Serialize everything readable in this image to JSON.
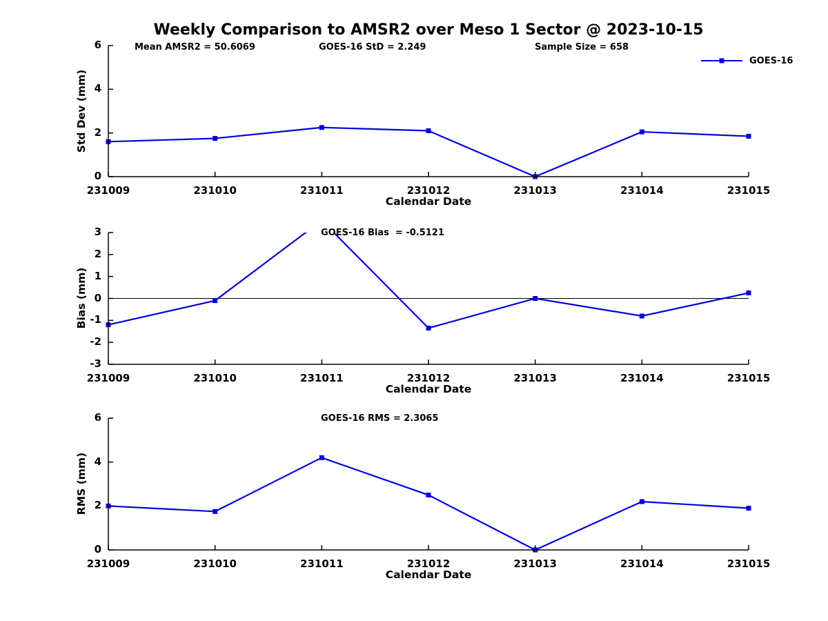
{
  "title": "Weekly Comparison to AMSR2 over Meso 1 Sector @ 2023-10-15",
  "legend": {
    "label": "GOES-16"
  },
  "colors": {
    "line": "#0000DC",
    "axis": "#000000",
    "background": "#FFFFFF"
  },
  "chart_data": [
    {
      "type": "line",
      "name": "std-dev-subplot",
      "categories": [
        "231009",
        "231010",
        "231011",
        "231012",
        "231013",
        "231014",
        "231015"
      ],
      "series": [
        {
          "name": "GOES-16",
          "values": [
            1.6,
            1.75,
            2.25,
            2.1,
            0.0,
            2.05,
            1.85
          ]
        }
      ],
      "xlabel": "Calendar Date",
      "ylabel": "Std Dev (mm)",
      "ylim": [
        0,
        6
      ],
      "yticks": [
        0,
        2,
        4,
        6
      ],
      "annotations": [
        "Mean AMSR2 = 50.6069",
        "GOES-16 StD = 2.249",
        "Sample Size = 658"
      ]
    },
    {
      "type": "line",
      "name": "bias-subplot",
      "categories": [
        "231009",
        "231010",
        "231011",
        "231012",
        "231013",
        "231014",
        "231015"
      ],
      "series": [
        {
          "name": "GOES-16",
          "values": [
            -1.2,
            -0.1,
            3.55,
            -1.35,
            0.0,
            -0.8,
            0.25
          ]
        }
      ],
      "xlabel": "Calendar Date",
      "ylabel": "Bias (mm)",
      "ylim": [
        -3,
        3
      ],
      "yticks": [
        -3,
        -2,
        -1,
        0,
        1,
        2,
        3
      ],
      "zero_line": true,
      "note": "line peak at 231011 rises above the y-axis maximum and is clipped at the top of the axes",
      "annotations": [
        "GOES-16 Bias  = -0.5121"
      ]
    },
    {
      "type": "line",
      "name": "rms-subplot",
      "categories": [
        "231009",
        "231010",
        "231011",
        "231012",
        "231013",
        "231014",
        "231015"
      ],
      "series": [
        {
          "name": "GOES-16",
          "values": [
            2.0,
            1.75,
            4.2,
            2.5,
            0.0,
            2.2,
            1.9
          ]
        }
      ],
      "xlabel": "Calendar Date",
      "ylabel": "RMS (mm)",
      "ylim": [
        0,
        6
      ],
      "yticks": [
        0,
        2,
        4,
        6
      ],
      "annotations": [
        "GOES-16 RMS = 2.3065"
      ]
    }
  ]
}
